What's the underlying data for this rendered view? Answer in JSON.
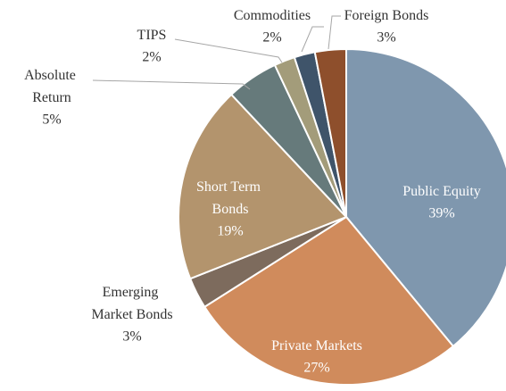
{
  "chart_data": {
    "type": "pie",
    "categories": [
      "Public Equity",
      "Private Markets",
      "Emerging Market Bonds",
      "Short Term Bonds",
      "Absolute Return",
      "TIPS",
      "Commodities",
      "Foreign Bonds"
    ],
    "values": [
      39,
      27,
      3,
      19,
      5,
      2,
      2,
      3
    ],
    "value_labels": [
      "39%",
      "27%",
      "3%",
      "19%",
      "5%",
      "2%",
      "2%",
      "3%"
    ],
    "colors": [
      "#7f97ae",
      "#d08b5c",
      "#7d6b5d",
      "#b3946d",
      "#667a7b",
      "#a39c7a",
      "#3f546a",
      "#8e4f2c"
    ]
  }
}
